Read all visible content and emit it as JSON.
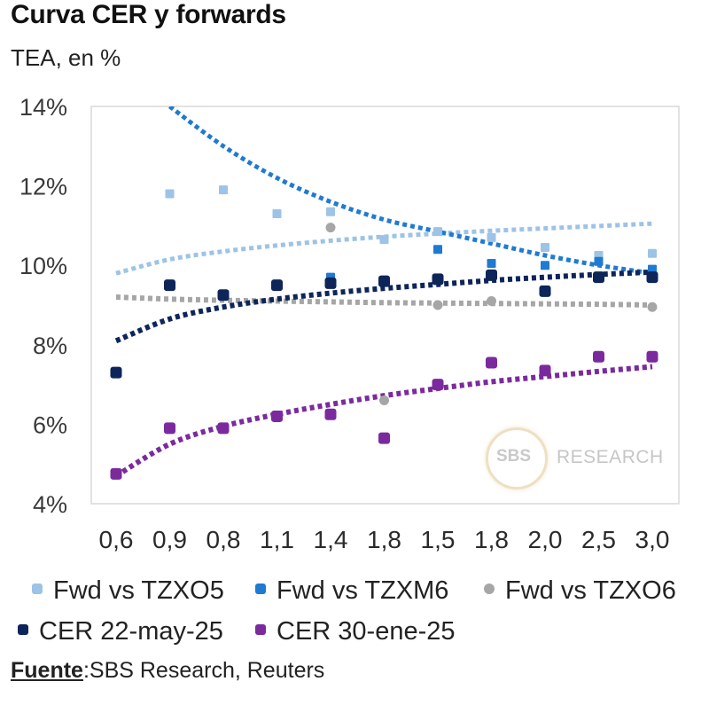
{
  "title": "Curva CER y forwards",
  "subtitle": "TEA, en %",
  "source_label": "Fuente",
  "source_text": ":SBS Research, Reuters",
  "watermark": {
    "logo": "SBS",
    "text": "RESEARCH"
  },
  "chart_data": {
    "type": "scatter",
    "title": "Curva CER y forwards",
    "ylabel": "TEA, en %",
    "xlabel": "",
    "ylim": [
      4,
      14
    ],
    "yticks": [
      4,
      6,
      8,
      10,
      12,
      14
    ],
    "ytick_labels": [
      "4%",
      "6%",
      "8%",
      "10%",
      "12%",
      "14%"
    ],
    "categories": [
      "0,6",
      "0,9",
      "0,8",
      "1,1",
      "1,4",
      "1,8",
      "1,5",
      "1,8",
      "2,0",
      "2,5",
      "3,0"
    ],
    "grid": false,
    "series": [
      {
        "name": "Fwd vs TZXO5",
        "color": "#9dc3e6",
        "marker": "square-small",
        "points": [
          [
            1,
            11.8
          ],
          [
            2,
            11.9
          ],
          [
            3,
            11.3
          ],
          [
            4,
            11.35
          ],
          [
            5,
            10.65
          ],
          [
            6,
            10.85
          ],
          [
            7,
            10.7
          ],
          [
            8,
            10.45
          ],
          [
            9,
            10.25
          ],
          [
            10,
            10.3
          ]
        ],
        "trend": [
          [
            0,
            9.8
          ],
          [
            1,
            10.15
          ],
          [
            2,
            10.35
          ],
          [
            3,
            10.5
          ],
          [
            4,
            10.62
          ],
          [
            5,
            10.72
          ],
          [
            6,
            10.8
          ],
          [
            7,
            10.87
          ],
          [
            8,
            10.93
          ],
          [
            9,
            10.99
          ],
          [
            10,
            11.05
          ]
        ]
      },
      {
        "name": "Fwd vs TZXM6",
        "color": "#1f7ad1",
        "marker": "square-small",
        "points": [
          [
            4,
            9.7
          ],
          [
            6,
            10.4
          ],
          [
            7,
            10.05
          ],
          [
            8,
            10.0
          ],
          [
            9,
            10.1
          ],
          [
            10,
            9.9
          ]
        ],
        "trend": [
          [
            1,
            14.0
          ],
          [
            2,
            13.0
          ],
          [
            3,
            12.2
          ],
          [
            4,
            11.6
          ],
          [
            5,
            11.15
          ],
          [
            6,
            10.85
          ],
          [
            7,
            10.55
          ],
          [
            8,
            10.25
          ],
          [
            9,
            10.0
          ],
          [
            10,
            9.8
          ]
        ]
      },
      {
        "name": "Fwd vs TZXO6",
        "color": "#a6a6a6",
        "marker": "circle",
        "points": [
          [
            4,
            10.95
          ],
          [
            5,
            6.6
          ],
          [
            6,
            9.0
          ],
          [
            7,
            9.1
          ],
          [
            10,
            8.95
          ]
        ],
        "trend": [
          [
            0,
            9.2
          ],
          [
            1,
            9.15
          ],
          [
            2,
            9.12
          ],
          [
            3,
            9.1
          ],
          [
            4,
            9.08
          ],
          [
            5,
            9.06
          ],
          [
            6,
            9.05
          ],
          [
            7,
            9.04
          ],
          [
            8,
            9.03
          ],
          [
            9,
            9.02
          ],
          [
            10,
            9.0
          ]
        ]
      },
      {
        "name": "CER 22-may-25",
        "color": "#0d2559",
        "marker": "square-round",
        "points": [
          [
            0,
            7.3
          ],
          [
            1,
            9.5
          ],
          [
            2,
            9.25
          ],
          [
            3,
            9.5
          ],
          [
            4,
            9.55
          ],
          [
            5,
            9.6
          ],
          [
            6,
            9.65
          ],
          [
            7,
            9.75
          ],
          [
            8,
            9.35
          ],
          [
            9,
            9.7
          ],
          [
            10,
            9.7
          ]
        ],
        "trend": [
          [
            0,
            8.1
          ],
          [
            1,
            8.65
          ],
          [
            2,
            8.95
          ],
          [
            3,
            9.15
          ],
          [
            4,
            9.3
          ],
          [
            5,
            9.42
          ],
          [
            6,
            9.52
          ],
          [
            7,
            9.62
          ],
          [
            8,
            9.7
          ],
          [
            9,
            9.77
          ],
          [
            10,
            9.83
          ]
        ]
      },
      {
        "name": "CER 30-ene-25",
        "color": "#7b2a9e",
        "marker": "square-round",
        "points": [
          [
            0,
            4.75
          ],
          [
            1,
            5.9
          ],
          [
            2,
            5.9
          ],
          [
            3,
            6.2
          ],
          [
            4,
            6.25
          ],
          [
            5,
            5.65
          ],
          [
            6,
            7.0
          ],
          [
            7,
            7.55
          ],
          [
            8,
            7.35
          ],
          [
            9,
            7.7
          ],
          [
            10,
            7.7
          ]
        ],
        "trend": [
          [
            0,
            4.7
          ],
          [
            1,
            5.5
          ],
          [
            2,
            5.95
          ],
          [
            3,
            6.25
          ],
          [
            4,
            6.5
          ],
          [
            5,
            6.72
          ],
          [
            6,
            6.9
          ],
          [
            7,
            7.07
          ],
          [
            8,
            7.2
          ],
          [
            9,
            7.33
          ],
          [
            10,
            7.45
          ]
        ]
      }
    ],
    "legend": [
      "Fwd vs TZXO5",
      "Fwd vs TZXM6",
      "Fwd vs TZXO6",
      "CER 22-may-25",
      "CER 30-ene-25"
    ]
  }
}
